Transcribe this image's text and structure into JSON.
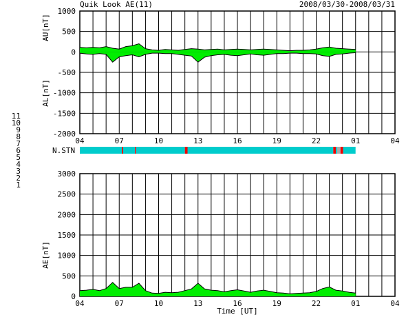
{
  "header": {
    "title": "Quik Look AE(11)",
    "date_range": "2008/03/30-2008/03/31"
  },
  "colors": {
    "fill": "#00ee00",
    "station_low": "#ee0000",
    "station_mid": "#aaaaaa",
    "n11": "#00cccc",
    "n10": "#ff00ff",
    "n9": "#000099",
    "n8": "#ffcc00",
    "n7": "#99ee00",
    "n6": "#ee0000",
    "n5": "#aaaaaa",
    "n4": "#77bbbb",
    "n3": "#00aaaa",
    "n2": "#aa0088",
    "n1": "#0000aa"
  },
  "station_legend": [
    "11",
    "10",
    "9",
    "8",
    "7",
    "6",
    "5",
    "4",
    "3",
    "2",
    "1"
  ],
  "station_bar_label": "N.STN",
  "station_segments": [
    {
      "start": 4.0,
      "end": 7.2,
      "n": 11
    },
    {
      "start": 7.2,
      "end": 7.3,
      "n": 6
    },
    {
      "start": 7.3,
      "end": 8.2,
      "n": 11
    },
    {
      "start": 8.2,
      "end": 8.28,
      "n": 6
    },
    {
      "start": 8.28,
      "end": 12.0,
      "n": 11
    },
    {
      "start": 12.0,
      "end": 12.2,
      "n": 6
    },
    {
      "start": 12.2,
      "end": 23.3,
      "n": 11
    },
    {
      "start": 23.3,
      "end": 23.5,
      "n": 6
    },
    {
      "start": 23.5,
      "end": 23.6,
      "n": 11
    },
    {
      "start": 23.6,
      "end": 23.85,
      "n": 5
    },
    {
      "start": 23.85,
      "end": 24.05,
      "n": 6
    },
    {
      "start": 24.05,
      "end": 25.0,
      "n": 11
    }
  ],
  "chart_data": [
    {
      "type": "area",
      "ylabel_upper": "AU[nT]",
      "ylabel_lower": "AL[nT]",
      "ylim": [
        -2000,
        1000
      ],
      "yticks": [
        1000,
        500,
        0,
        -500,
        -1000,
        -1500,
        -2000
      ],
      "xlim": [
        4,
        28
      ],
      "xticks": [
        "04",
        "07",
        "10",
        "13",
        "16",
        "19",
        "22",
        "01",
        "04"
      ],
      "time": [
        4,
        4.5,
        5,
        5.5,
        6,
        6.5,
        7,
        7.5,
        8,
        8.5,
        9,
        9.5,
        10,
        10.5,
        11,
        11.5,
        12,
        12.5,
        13,
        13.5,
        14,
        14.5,
        15,
        15.5,
        16,
        16.5,
        17,
        17.5,
        18,
        18.5,
        19,
        19.5,
        20,
        20.5,
        21,
        21.5,
        22,
        22.5,
        23,
        23.5,
        24,
        24.5,
        25
      ],
      "series": [
        {
          "name": "AU",
          "values": [
            110,
            100,
            110,
            100,
            130,
            90,
            70,
            130,
            150,
            200,
            80,
            50,
            40,
            60,
            50,
            40,
            60,
            80,
            70,
            50,
            60,
            70,
            50,
            60,
            70,
            60,
            50,
            60,
            70,
            60,
            50,
            40,
            30,
            40,
            40,
            50,
            70,
            100,
            120,
            90,
            80,
            70,
            60
          ]
        },
        {
          "name": "AL",
          "values": [
            -30,
            -50,
            -60,
            -40,
            -60,
            -250,
            -120,
            -90,
            -70,
            -120,
            -60,
            -30,
            -30,
            -40,
            -40,
            -60,
            -80,
            -100,
            -250,
            -130,
            -90,
            -70,
            -60,
            -80,
            -90,
            -70,
            -50,
            -70,
            -80,
            -60,
            -40,
            -40,
            -30,
            -30,
            -40,
            -40,
            -50,
            -90,
            -110,
            -60,
            -50,
            -30,
            -20
          ]
        }
      ]
    },
    {
      "type": "area",
      "ylabel": "AE[nT]",
      "xlabel": "Time [UT]",
      "ylim": [
        0,
        3000
      ],
      "yticks": [
        3000,
        2500,
        2000,
        1500,
        1000,
        500,
        0
      ],
      "xlim": [
        4,
        28
      ],
      "xticks": [
        "04",
        "07",
        "10",
        "13",
        "16",
        "19",
        "22",
        "01",
        "04"
      ],
      "time": [
        4,
        4.5,
        5,
        5.5,
        6,
        6.5,
        7,
        7.5,
        8,
        8.5,
        9,
        9.5,
        10,
        10.5,
        11,
        11.5,
        12,
        12.5,
        13,
        13.5,
        14,
        14.5,
        15,
        15.5,
        16,
        16.5,
        17,
        17.5,
        18,
        18.5,
        19,
        19.5,
        20,
        20.5,
        21,
        21.5,
        22,
        22.5,
        23,
        23.5,
        24,
        24.5,
        25
      ],
      "series": [
        {
          "name": "AE",
          "values": [
            140,
            150,
            170,
            140,
            190,
            340,
            190,
            220,
            220,
            320,
            140,
            80,
            70,
            100,
            90,
            100,
            140,
            180,
            320,
            180,
            150,
            140,
            110,
            140,
            160,
            130,
            100,
            130,
            150,
            120,
            90,
            80,
            60,
            70,
            80,
            90,
            120,
            190,
            230,
            150,
            130,
            100,
            80
          ]
        }
      ]
    }
  ]
}
